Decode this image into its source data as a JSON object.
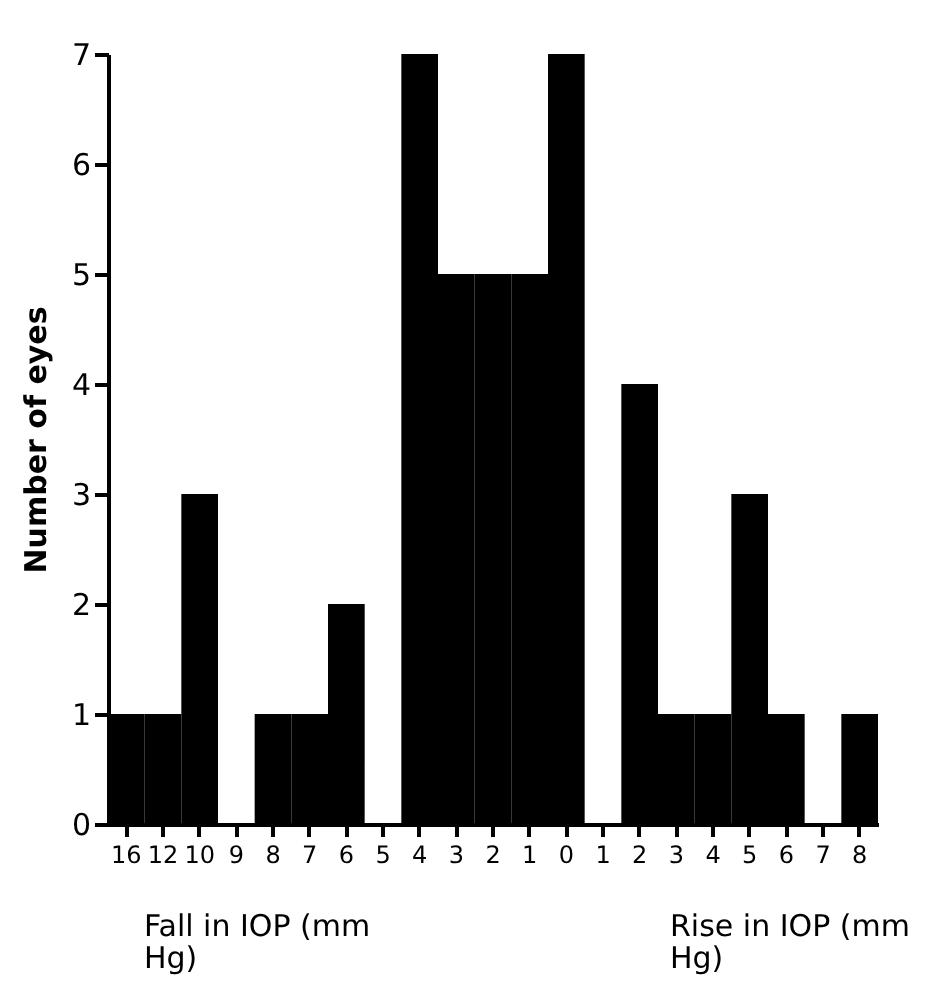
{
  "chart_data": {
    "type": "bar",
    "ylabel": "Number of eyes",
    "categories": [
      "16",
      "12",
      "10",
      "9",
      "8",
      "7",
      "6",
      "5",
      "4",
      "3",
      "2",
      "1",
      "0",
      "1",
      "2",
      "3",
      "4",
      "5",
      "6",
      "7",
      "8"
    ],
    "values": [
      1,
      1,
      3,
      0,
      1,
      1,
      2,
      0,
      7,
      5,
      5,
      5,
      7,
      0,
      4,
      1,
      1,
      3,
      1,
      0,
      1
    ],
    "color": "#000000",
    "ylim": [
      0,
      7
    ],
    "yticks": [
      0,
      1,
      2,
      3,
      4,
      5,
      6,
      7
    ],
    "grid": false,
    "annotations": [
      "Fall in IOP (mm Hg)",
      "Rise in IOP (mm Hg)"
    ]
  }
}
